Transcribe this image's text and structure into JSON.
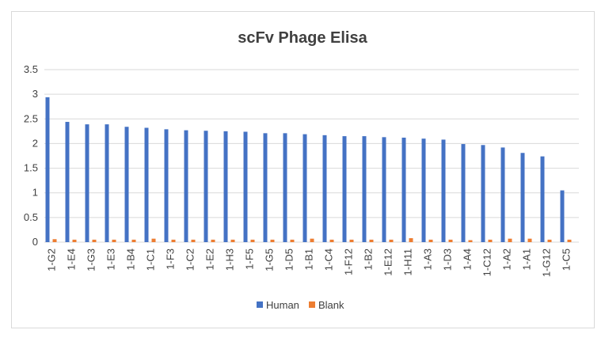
{
  "chart_data": {
    "type": "bar",
    "title": "scFv Phage Elisa",
    "xlabel": "",
    "ylabel": "",
    "ylim": [
      0,
      3.5
    ],
    "yticks": [
      "0",
      "0.5",
      "1",
      "1.5",
      "2",
      "2.5",
      "3",
      "3.5"
    ],
    "grid": true,
    "legend_position": "bottom",
    "categories": [
      "1-G2",
      "1-E4",
      "1-G3",
      "1-E3",
      "1-B4",
      "1-C1",
      "1-F3",
      "1-C2",
      "1-E2",
      "1-H3",
      "1-F5",
      "1-G5",
      "1-D5",
      "1-B1",
      "1-C4",
      "1-F12",
      "1-B2",
      "1-E12",
      "1-H11",
      "1-A3",
      "1-D3",
      "1-A4",
      "1-C12",
      "1-A2",
      "1-A1",
      "1-G12",
      "1-C5"
    ],
    "series": [
      {
        "name": "Human",
        "color": "#4472c4",
        "values": [
          2.94,
          2.44,
          2.39,
          2.39,
          2.34,
          2.32,
          2.29,
          2.27,
          2.26,
          2.25,
          2.24,
          2.21,
          2.21,
          2.19,
          2.17,
          2.15,
          2.15,
          2.13,
          2.12,
          2.1,
          2.08,
          1.99,
          1.97,
          1.92,
          1.81,
          1.74,
          1.05
        ]
      },
      {
        "name": "Blank",
        "color": "#ed7d31",
        "values": [
          0.06,
          0.05,
          0.05,
          0.05,
          0.05,
          0.07,
          0.05,
          0.05,
          0.05,
          0.05,
          0.05,
          0.05,
          0.05,
          0.07,
          0.05,
          0.05,
          0.05,
          0.05,
          0.08,
          0.05,
          0.05,
          0.04,
          0.05,
          0.07,
          0.07,
          0.05,
          0.05
        ]
      }
    ]
  }
}
